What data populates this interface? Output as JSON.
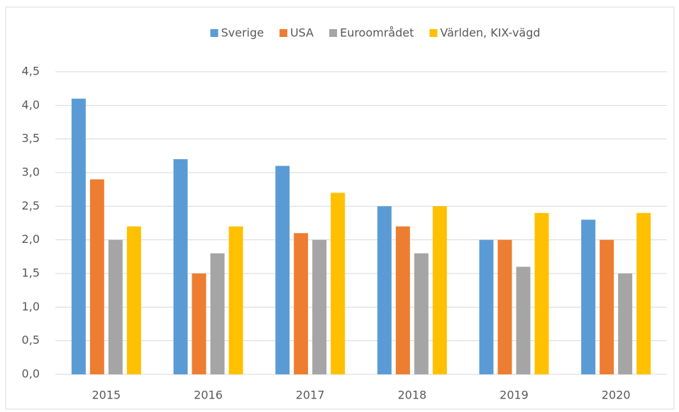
{
  "chart_data": {
    "type": "bar",
    "categories": [
      "2015",
      "2016",
      "2017",
      "2018",
      "2019",
      "2020"
    ],
    "series": [
      {
        "name": "Sverige",
        "color": "#5b9bd5",
        "values": [
          4.1,
          3.2,
          3.1,
          2.5,
          2.0,
          2.3
        ]
      },
      {
        "name": "USA",
        "color": "#ed7d31",
        "values": [
          2.9,
          1.5,
          2.1,
          2.2,
          2.0,
          2.0
        ]
      },
      {
        "name": "Euroområdet",
        "color": "#a5a5a5",
        "values": [
          2.0,
          1.8,
          2.0,
          1.8,
          1.6,
          1.5
        ]
      },
      {
        "name": "Världen, KIX-vägd",
        "color": "#ffc000",
        "values": [
          2.2,
          2.2,
          2.7,
          2.5,
          2.4,
          2.4
        ]
      }
    ],
    "ylim": [
      0,
      4.5
    ],
    "yticks": [
      {
        "value": 0,
        "label": "0,0"
      },
      {
        "value": 0.5,
        "label": "0,5"
      },
      {
        "value": 1,
        "label": "1,0"
      },
      {
        "value": 1.5,
        "label": "1,5"
      },
      {
        "value": 2,
        "label": "2,0"
      },
      {
        "value": 2.5,
        "label": "2,5"
      },
      {
        "value": 3,
        "label": "3,0"
      },
      {
        "value": 3.5,
        "label": "3,5"
      },
      {
        "value": 4,
        "label": "4,0"
      },
      {
        "value": 4.5,
        "label": "4,5"
      }
    ],
    "grid": true,
    "legend": "top"
  }
}
